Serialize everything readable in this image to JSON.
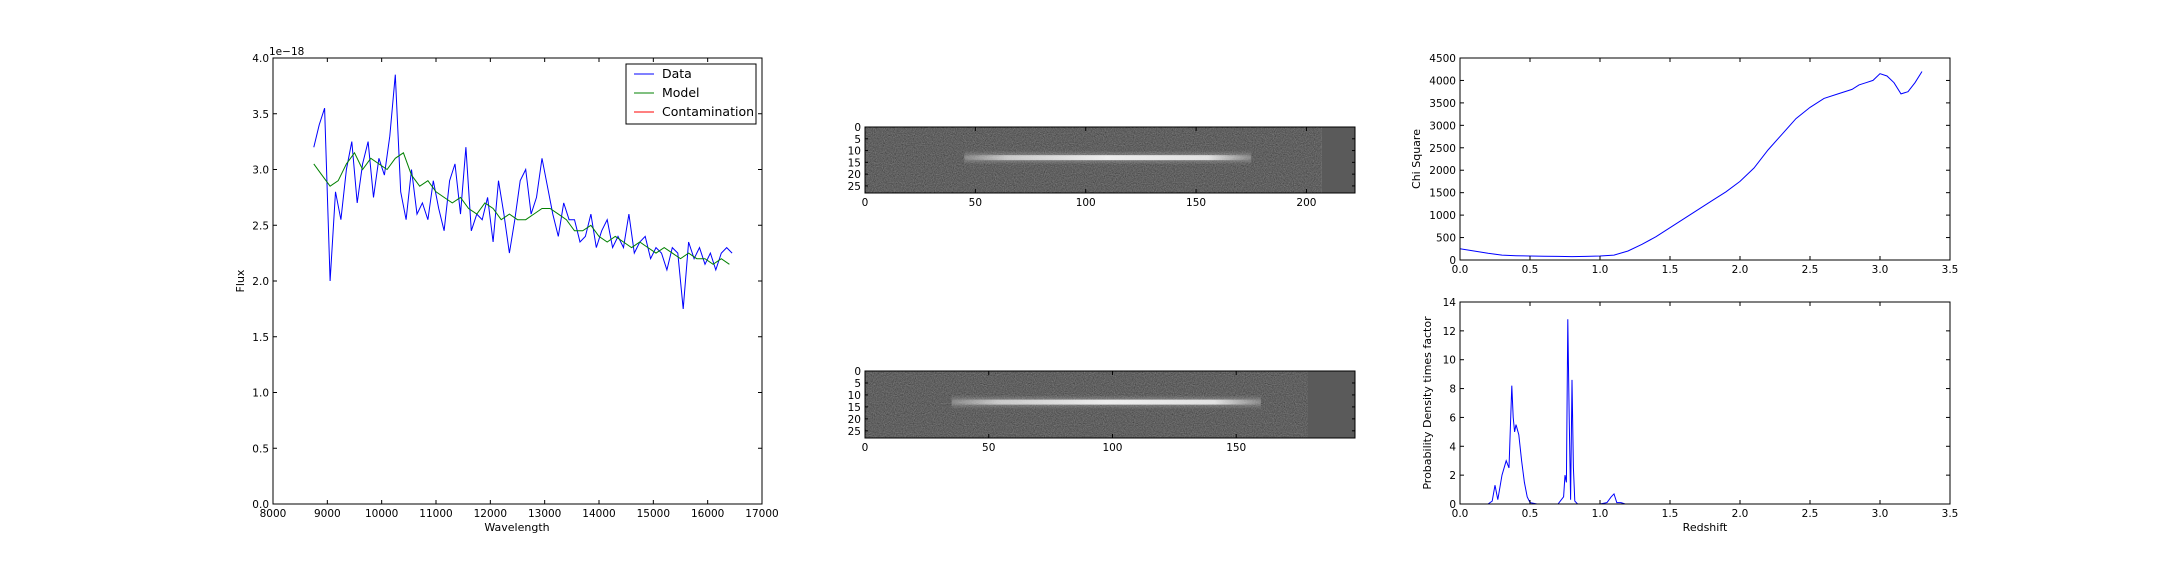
{
  "chart_data": [
    {
      "type": "line",
      "title": "",
      "xlabel": "Wavelength",
      "ylabel": "Flux",
      "offset_text": "1e−18",
      "xlim": [
        8000,
        17000
      ],
      "ylim": [
        0.0,
        4.0
      ],
      "xticks": [
        8000,
        9000,
        10000,
        11000,
        12000,
        13000,
        14000,
        15000,
        16000,
        17000
      ],
      "yticks": [
        "0.0",
        "0.5",
        "1.0",
        "1.5",
        "2.0",
        "2.5",
        "3.0",
        "3.5",
        "4.0"
      ],
      "legend_position": "top-right",
      "series": [
        {
          "name": "Data",
          "color": "#0000ff",
          "x": [
            8750,
            8850,
            8950,
            9050,
            9150,
            9250,
            9350,
            9450,
            9550,
            9650,
            9750,
            9850,
            9950,
            10050,
            10150,
            10250,
            10350,
            10450,
            10550,
            10650,
            10750,
            10850,
            10950,
            11050,
            11150,
            11250,
            11350,
            11450,
            11550,
            11650,
            11750,
            11850,
            11950,
            12050,
            12150,
            12250,
            12350,
            12450,
            12550,
            12650,
            12750,
            12850,
            12950,
            13050,
            13150,
            13250,
            13350,
            13450,
            13550,
            13650,
            13750,
            13850,
            13950,
            14050,
            14150,
            14250,
            14350,
            14450,
            14550,
            14650,
            14750,
            14850,
            14950,
            15050,
            15150,
            15250,
            15350,
            15450,
            15550,
            15650,
            15750,
            15850,
            15950,
            16050,
            16150,
            16250,
            16350,
            16450
          ],
          "values": [
            3.2,
            3.4,
            3.55,
            2.0,
            2.8,
            2.55,
            3.0,
            3.25,
            2.7,
            3.05,
            3.25,
            2.75,
            3.1,
            2.95,
            3.3,
            3.85,
            2.8,
            2.55,
            3.0,
            2.6,
            2.7,
            2.55,
            2.9,
            2.65,
            2.45,
            2.9,
            3.05,
            2.6,
            3.2,
            2.45,
            2.6,
            2.55,
            2.75,
            2.35,
            2.9,
            2.6,
            2.25,
            2.55,
            2.9,
            3.0,
            2.6,
            2.75,
            3.1,
            2.85,
            2.6,
            2.4,
            2.7,
            2.55,
            2.55,
            2.35,
            2.4,
            2.6,
            2.3,
            2.45,
            2.55,
            2.3,
            2.4,
            2.3,
            2.6,
            2.25,
            2.35,
            2.4,
            2.2,
            2.3,
            2.25,
            2.1,
            2.3,
            2.25,
            1.75,
            2.35,
            2.2,
            2.3,
            2.15,
            2.25,
            2.1,
            2.25,
            2.3,
            2.25
          ]
        },
        {
          "name": "Model",
          "color": "#008000",
          "x": [
            8750,
            8900,
            9050,
            9200,
            9350,
            9500,
            9650,
            9800,
            9950,
            10100,
            10250,
            10400,
            10550,
            10700,
            10850,
            11000,
            11150,
            11300,
            11450,
            11600,
            11750,
            11900,
            12050,
            12200,
            12350,
            12500,
            12650,
            12800,
            12950,
            13100,
            13250,
            13400,
            13550,
            13700,
            13850,
            14000,
            14150,
            14300,
            14450,
            14600,
            14750,
            14900,
            15050,
            15200,
            15350,
            15500,
            15650,
            15800,
            15950,
            16100,
            16250,
            16400
          ],
          "values": [
            3.05,
            2.95,
            2.85,
            2.9,
            3.05,
            3.15,
            3.0,
            3.1,
            3.05,
            3.0,
            3.1,
            3.15,
            2.95,
            2.85,
            2.9,
            2.8,
            2.75,
            2.7,
            2.75,
            2.65,
            2.6,
            2.7,
            2.65,
            2.55,
            2.6,
            2.55,
            2.55,
            2.6,
            2.65,
            2.65,
            2.6,
            2.55,
            2.45,
            2.45,
            2.5,
            2.4,
            2.35,
            2.4,
            2.35,
            2.3,
            2.35,
            2.3,
            2.25,
            2.3,
            2.25,
            2.2,
            2.25,
            2.2,
            2.2,
            2.15,
            2.2,
            2.15
          ]
        },
        {
          "name": "Contamination",
          "color": "#ff0000",
          "x": [
            8750,
            16450
          ],
          "values": [
            0.0,
            0.0
          ]
        }
      ]
    },
    {
      "type": "heatmap",
      "title": "",
      "xticks": [
        "0",
        "50",
        "100",
        "150",
        "200"
      ],
      "yticks": [
        "0",
        "5",
        "10",
        "15",
        "20",
        "25"
      ],
      "xlim": [
        0,
        222
      ],
      "ylim": [
        28,
        0
      ],
      "trace_x": [
        45,
        175
      ],
      "trace_y": 13,
      "data_extent_x": 207
    },
    {
      "type": "heatmap",
      "title": "",
      "xticks": [
        "0",
        "50",
        "100",
        "150"
      ],
      "yticks": [
        "0",
        "5",
        "10",
        "15",
        "20",
        "25"
      ],
      "xlim": [
        0,
        198
      ],
      "ylim": [
        28,
        0
      ],
      "trace_x": [
        35,
        160
      ],
      "trace_y": 13,
      "data_extent_x": 179
    },
    {
      "type": "line",
      "title": "",
      "xlabel": "",
      "ylabel": "Chi Square",
      "xlim": [
        0.0,
        3.5
      ],
      "ylim": [
        0,
        4500
      ],
      "xticks": [
        "0.0",
        "0.5",
        "1.0",
        "1.5",
        "2.0",
        "2.5",
        "3.0",
        "3.5"
      ],
      "yticks": [
        "0",
        "500",
        "1000",
        "1500",
        "2000",
        "2500",
        "3000",
        "3500",
        "4000",
        "4500"
      ],
      "series": [
        {
          "color": "#0000ff",
          "x": [
            0.0,
            0.1,
            0.2,
            0.3,
            0.4,
            0.5,
            0.6,
            0.7,
            0.8,
            0.9,
            1.0,
            1.1,
            1.2,
            1.3,
            1.4,
            1.5,
            1.6,
            1.7,
            1.8,
            1.9,
            2.0,
            2.1,
            2.2,
            2.3,
            2.4,
            2.5,
            2.6,
            2.7,
            2.8,
            2.85,
            2.9,
            2.95,
            3.0,
            3.05,
            3.1,
            3.15,
            3.2,
            3.25,
            3.3
          ],
          "values": [
            250,
            200,
            150,
            110,
            95,
            90,
            85,
            80,
            75,
            80,
            90,
            110,
            200,
            350,
            520,
            720,
            920,
            1120,
            1320,
            1520,
            1750,
            2050,
            2450,
            2800,
            3150,
            3400,
            3600,
            3700,
            3800,
            3900,
            3950,
            4000,
            4150,
            4100,
            3950,
            3700,
            3750,
            3950,
            4200
          ]
        }
      ]
    },
    {
      "type": "line",
      "title": "",
      "xlabel": "Redshift",
      "ylabel": "Probability Density times factor",
      "xlim": [
        0.0,
        3.5
      ],
      "ylim": [
        0,
        14
      ],
      "xticks": [
        "0.0",
        "0.5",
        "1.0",
        "1.5",
        "2.0",
        "2.5",
        "3.0",
        "3.5"
      ],
      "yticks": [
        "0",
        "2",
        "4",
        "6",
        "8",
        "10",
        "12",
        "14"
      ],
      "series": [
        {
          "color": "#0000ff",
          "x": [
            0.0,
            0.2,
            0.23,
            0.25,
            0.27,
            0.3,
            0.33,
            0.35,
            0.37,
            0.38,
            0.39,
            0.4,
            0.42,
            0.44,
            0.46,
            0.48,
            0.5,
            0.55,
            0.6,
            0.7,
            0.74,
            0.75,
            0.76,
            0.77,
            0.78,
            0.79,
            0.8,
            0.81,
            0.82,
            0.84,
            0.9,
            1.0,
            1.05,
            1.08,
            1.1,
            1.12,
            1.15,
            1.18,
            1.2,
            1.5,
            2.0,
            2.5,
            3.0,
            3.3
          ],
          "values": [
            0,
            0,
            0.2,
            1.3,
            0.3,
            2.0,
            3.0,
            2.5,
            8.2,
            6.0,
            5.0,
            5.5,
            4.8,
            3.0,
            1.5,
            0.5,
            0.1,
            0,
            0,
            0,
            0.5,
            2.0,
            1.5,
            12.8,
            6.0,
            0.3,
            8.6,
            2.5,
            0.2,
            0,
            0,
            0,
            0.1,
            0.5,
            0.7,
            0.1,
            0.1,
            0,
            0,
            0,
            0,
            0,
            0,
            0
          ]
        }
      ]
    }
  ]
}
